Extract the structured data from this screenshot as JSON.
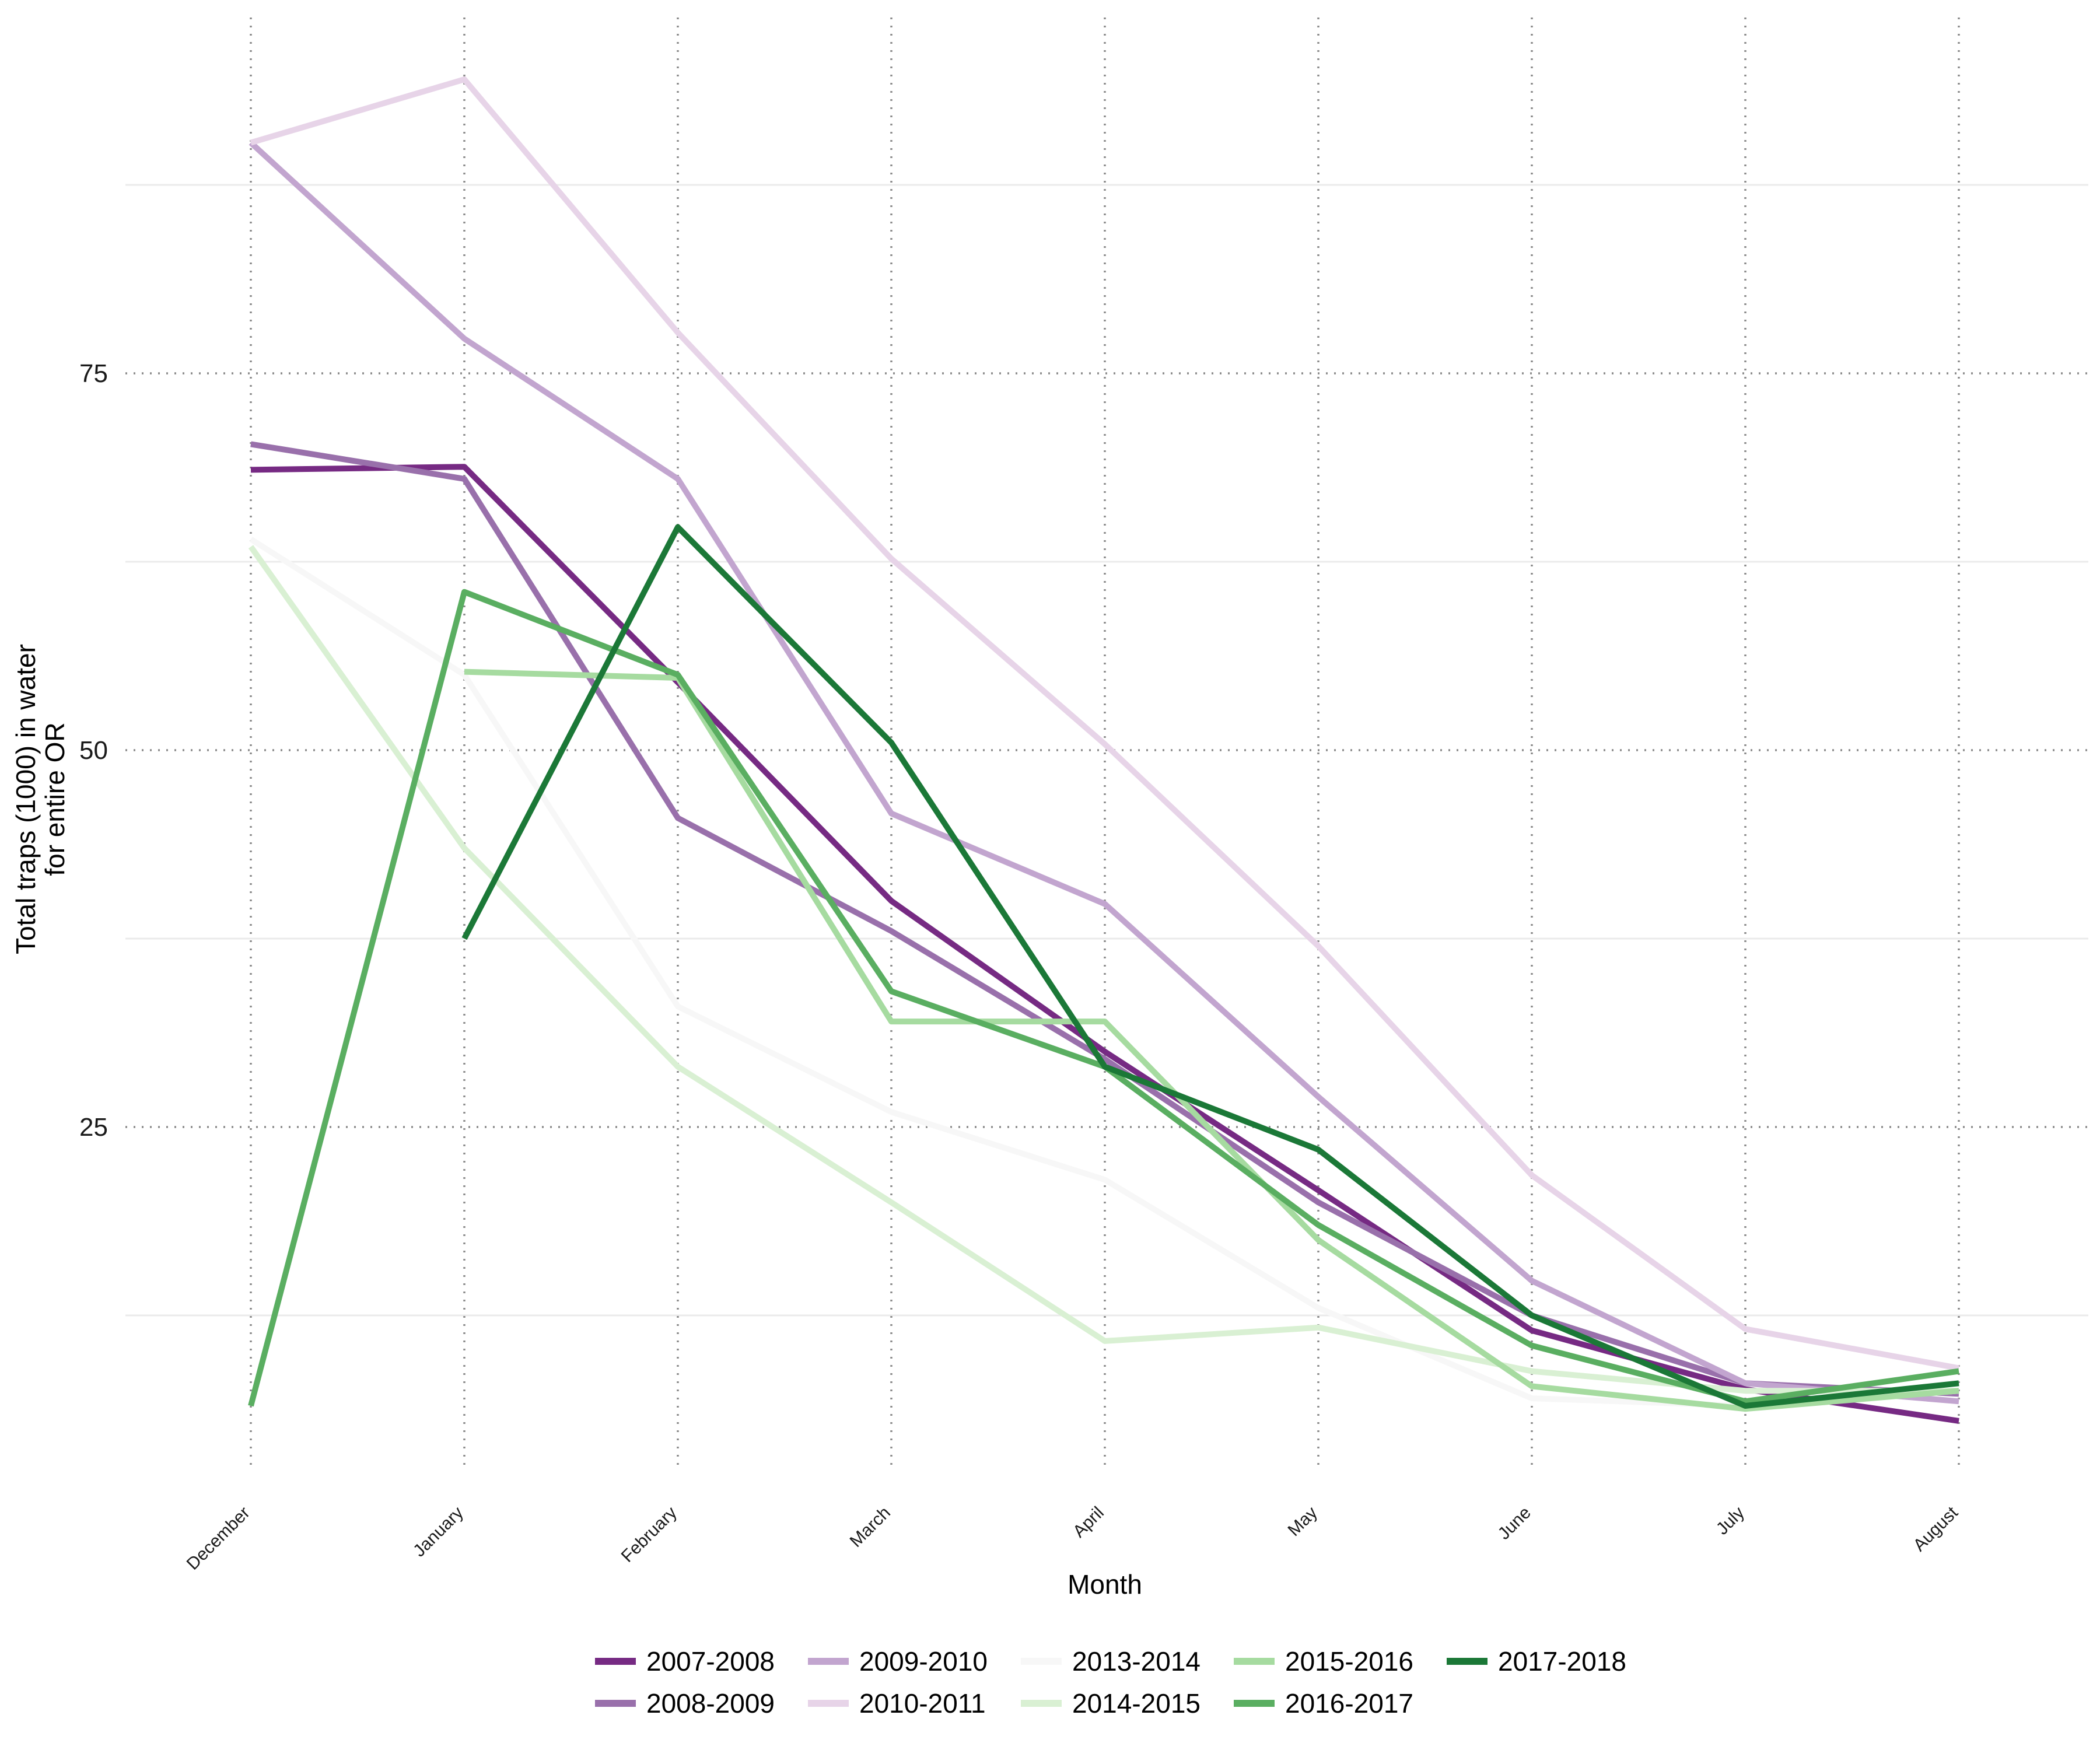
{
  "chart_data": {
    "type": "line",
    "title": "",
    "xlabel": "Month",
    "ylabel": "Total traps (1000) in water\nfor entire OR",
    "categories": [
      "December",
      "January",
      "February",
      "March",
      "April",
      "May",
      "June",
      "July",
      "August"
    ],
    "ylim": [
      5,
      98
    ],
    "yticks": [
      25,
      50,
      75
    ],
    "grid": true,
    "legend_position": "bottom",
    "series": [
      {
        "name": "2007-2008",
        "color": "#762a83",
        "values": [
          68.6,
          68.8,
          54.5,
          40.0,
          30.0,
          20.8,
          11.5,
          7.6,
          5.5
        ]
      },
      {
        "name": "2008-2009",
        "color": "#9970ab",
        "values": [
          70.3,
          68.0,
          45.5,
          38.0,
          29.5,
          20.0,
          12.5,
          8.0,
          7.3
        ]
      },
      {
        "name": "2009-2010",
        "color": "#c2a5cf",
        "values": [
          90.3,
          77.3,
          68.0,
          45.8,
          39.8,
          27.0,
          14.8,
          8.0,
          6.8
        ]
      },
      {
        "name": "2010-2011",
        "color": "#e7d4e8",
        "values": [
          90.3,
          94.5,
          77.7,
          62.7,
          50.4,
          37.0,
          21.8,
          11.6,
          9.0
        ]
      },
      {
        "name": "2013-2014",
        "color": "#f7f7f7",
        "values": [
          64.0,
          55.0,
          33.0,
          26.0,
          21.5,
          13.0,
          7.0,
          6.5,
          7.5
        ]
      },
      {
        "name": "2014-2015",
        "color": "#d9f0d3",
        "values": [
          63.5,
          43.5,
          29.0,
          20.0,
          10.8,
          11.7,
          8.8,
          7.5,
          7.5
        ]
      },
      {
        "name": "2015-2016",
        "color": "#a6dba0",
        "values": [
          null,
          55.2,
          54.8,
          32.0,
          32.0,
          17.5,
          7.8,
          6.3,
          7.5
        ]
      },
      {
        "name": "2016-2017",
        "color": "#5aae61",
        "values": [
          6.5,
          60.5,
          55.0,
          34.0,
          29.0,
          18.5,
          10.5,
          6.8,
          8.8
        ]
      },
      {
        "name": "2017-2018",
        "color": "#1b7837",
        "values": [
          null,
          37.5,
          64.8,
          50.5,
          29.0,
          23.5,
          12.5,
          6.5,
          8.0
        ]
      }
    ]
  }
}
